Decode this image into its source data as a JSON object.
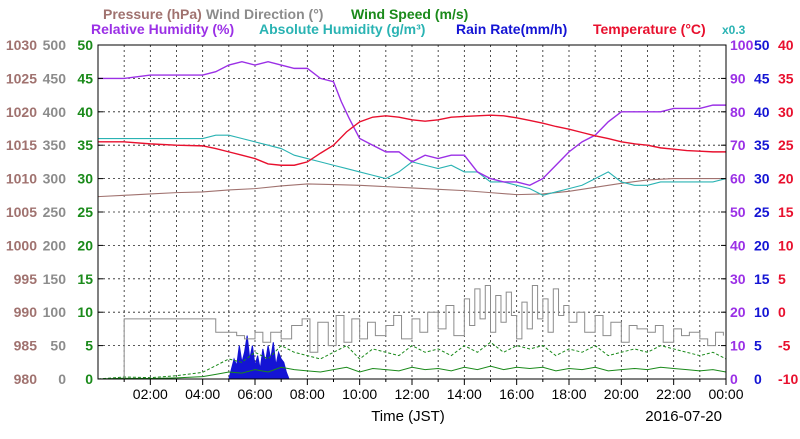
{
  "chart_data": {
    "type": "line",
    "legend": {
      "row1": [
        {
          "label": "Pressure (hPa)",
          "color": "#a0726f"
        },
        {
          "label": "Wind Direction (°)",
          "color": "#8c8c8c"
        },
        {
          "label": "Wind Speed (m/s)",
          "color": "#1a8a1a"
        }
      ],
      "row2": [
        {
          "label": "Relative Humidity (%)",
          "color": "#9b30e6"
        },
        {
          "label": "Absolute Humidity (g/m³)",
          "color": "#2ab3b3"
        },
        {
          "label": "Rain Rate(mm/h)",
          "color": "#1414d4"
        },
        {
          "label": "Temperature (°C)",
          "color": "#e8102e"
        }
      ],
      "abs_scale_note": "x0.3"
    },
    "xlabel": "Time (JST)",
    "date_label": "2016-07-20",
    "x_ticks": [
      "02:00",
      "04:00",
      "06:00",
      "08:00",
      "10:00",
      "12:00",
      "14:00",
      "16:00",
      "18:00",
      "20:00",
      "22:00",
      "00:00"
    ],
    "x_tick_hours": [
      2,
      4,
      6,
      8,
      10,
      12,
      14,
      16,
      18,
      20,
      22,
      24
    ],
    "xlim": [
      0,
      24
    ],
    "left_axes": [
      {
        "name": "pressure",
        "color": "#a0726f",
        "ticks": [
          "980",
          "985",
          "990",
          "995",
          "1000",
          "1005",
          "1010",
          "1015",
          "1020",
          "1025",
          "1030"
        ]
      },
      {
        "name": "wind-direction",
        "color": "#8c8c8c",
        "ticks": [
          "0",
          "50",
          "100",
          "150",
          "200",
          "250",
          "300",
          "350",
          "400",
          "450",
          "500"
        ]
      },
      {
        "name": "wind-speed",
        "color": "#1a8a1a",
        "ticks": [
          "0",
          "5",
          "10",
          "15",
          "20",
          "25",
          "30",
          "35",
          "40",
          "45",
          "50"
        ]
      }
    ],
    "right_axes": [
      {
        "name": "relative-humidity",
        "color": "#9b30e6",
        "ticks": [
          "0",
          "10",
          "20",
          "30",
          "40",
          "50",
          "60",
          "70",
          "80",
          "90",
          "100"
        ]
      },
      {
        "name": "rain-rate",
        "color": "#1414d4",
        "ticks": [
          "0",
          "5",
          "10",
          "15",
          "20",
          "25",
          "30",
          "35",
          "40",
          "45",
          "50"
        ]
      },
      {
        "name": "temperature",
        "color": "#e8102e",
        "ticks": [
          "-10",
          "-5",
          "0",
          "5",
          "10",
          "15",
          "20",
          "25",
          "30",
          "35",
          "40"
        ]
      }
    ],
    "series": [
      {
        "name": "Relative Humidity",
        "unit": "%",
        "ylim": [
          0,
          100
        ],
        "color": "#9b30e6",
        "x": [
          0,
          1,
          2,
          3,
          4,
          4.5,
          5,
          5.5,
          6,
          6.5,
          7,
          7.5,
          8,
          8.5,
          9,
          9.3,
          9.6,
          10,
          10.5,
          11,
          11.5,
          12,
          12.5,
          13,
          13.5,
          14,
          14.5,
          15,
          15.5,
          16,
          16.5,
          17,
          17.5,
          18,
          18.5,
          19,
          19.5,
          20,
          20.5,
          21,
          21.5,
          22,
          22.5,
          23,
          23.5,
          24
        ],
        "y": [
          90,
          90,
          91,
          91,
          91,
          92,
          94,
          95,
          94,
          95,
          94,
          93,
          93,
          90,
          89,
          83,
          78,
          72,
          70,
          68,
          68,
          65,
          67,
          66,
          67,
          67,
          62,
          60,
          59,
          59,
          58,
          60,
          64,
          68,
          71,
          73,
          77,
          80,
          80,
          80,
          80,
          81,
          81,
          81,
          82,
          82
        ]
      },
      {
        "name": "Absolute Humidity",
        "unit": "g/m³ (x0.3)",
        "ylim": [
          0,
          100
        ],
        "color": "#2ab3b3",
        "x": [
          0,
          1,
          2,
          3,
          4,
          4.5,
          5,
          5.5,
          6,
          6.5,
          7,
          7.5,
          8,
          8.5,
          9,
          9.5,
          10,
          10.5,
          11,
          11.5,
          12,
          12.5,
          13,
          13.5,
          14,
          14.5,
          15,
          15.5,
          16,
          16.5,
          17,
          17.5,
          18,
          18.5,
          19,
          19.5,
          20,
          20.5,
          21,
          21.5,
          22,
          22.5,
          23,
          23.5,
          24
        ],
        "y": [
          72,
          72,
          72,
          72,
          72,
          73,
          73,
          72,
          71,
          70,
          69,
          67,
          66,
          65,
          64,
          63,
          62,
          61,
          60,
          62,
          65,
          64,
          63,
          64,
          62,
          62,
          59,
          59,
          58,
          57,
          55,
          56,
          57,
          58,
          60,
          62,
          59,
          58,
          58,
          59,
          59,
          59,
          59,
          59,
          60
        ]
      },
      {
        "name": "Temperature",
        "unit": "°C",
        "ylim": [
          -10,
          40
        ],
        "color": "#e8102e",
        "x": [
          0,
          1,
          2,
          3,
          4,
          4.5,
          5,
          5.5,
          6,
          6.5,
          7,
          7.5,
          8,
          8.5,
          9,
          9.5,
          10,
          10.5,
          11,
          11.5,
          12,
          12.5,
          13,
          13.5,
          14,
          14.5,
          15,
          15.5,
          16,
          16.5,
          17,
          17.5,
          18,
          18.5,
          19,
          19.5,
          20,
          20.5,
          21,
          21.5,
          22,
          22.5,
          23,
          23.5,
          24
        ],
        "y": [
          25.5,
          25.5,
          25.2,
          25,
          24.9,
          24.5,
          24,
          23.5,
          23,
          22.2,
          22,
          22,
          22.5,
          23.8,
          25,
          27,
          28.5,
          29.2,
          29.4,
          29.2,
          28.8,
          28.6,
          28.8,
          29.2,
          29.3,
          29.4,
          29.5,
          29.4,
          29.1,
          28.7,
          28.3,
          27.8,
          27.4,
          26.9,
          26.4,
          26,
          25.5,
          25.2,
          25,
          24.6,
          24.4,
          24.2,
          24.1,
          24,
          24
        ]
      },
      {
        "name": "Pressure",
        "unit": "hPa",
        "ylim": [
          980,
          1030
        ],
        "color": "#a0726f",
        "x": [
          0,
          1,
          2,
          3,
          4,
          5,
          6,
          7,
          8,
          9,
          10,
          11,
          12,
          13,
          14,
          15,
          16,
          17,
          18,
          19,
          20,
          21,
          22,
          23,
          24
        ],
        "y": [
          1007.3,
          1007.5,
          1007.7,
          1007.9,
          1008,
          1008.3,
          1008.5,
          1008.9,
          1009.2,
          1009.1,
          1009,
          1008.8,
          1008.6,
          1008.4,
          1008.2,
          1007.9,
          1007.6,
          1007.7,
          1008.1,
          1008.7,
          1009.3,
          1009.8,
          1010,
          1010,
          1010
        ]
      },
      {
        "name": "Wind Direction",
        "unit": "°",
        "ylim": [
          0,
          500
        ],
        "color": "#8c8c8c",
        "style": "step",
        "x": [
          0,
          0.9,
          1,
          4.4,
          4.5,
          5,
          5.3,
          5.6,
          6,
          6.3,
          6.6,
          7,
          7.4,
          7.8,
          8.1,
          8.4,
          8.8,
          9.1,
          9.4,
          9.7,
          10,
          10.3,
          10.6,
          11,
          11.3,
          11.6,
          12,
          12.3,
          12.6,
          13,
          13.3,
          13.6,
          14,
          14.2,
          14.4,
          14.6,
          14.8,
          15,
          15.2,
          15.4,
          15.6,
          15.8,
          16,
          16.2,
          16.4,
          16.6,
          16.8,
          17,
          17.2,
          17.4,
          17.6,
          17.8,
          18,
          18.3,
          18.6,
          19,
          19.3,
          19.6,
          20,
          20.3,
          20.6,
          21,
          21.3,
          21.6,
          22,
          22.3,
          22.6,
          23,
          23.3,
          23.6,
          23.9
        ],
        "y": [
          0,
          0,
          90,
          90,
          70,
          70,
          65,
          60,
          70,
          55,
          70,
          60,
          80,
          90,
          40,
          85,
          50,
          95,
          55,
          90,
          60,
          85,
          65,
          80,
          95,
          60,
          90,
          70,
          100,
          75,
          110,
          65,
          120,
          80,
          135,
          90,
          140,
          70,
          125,
          85,
          130,
          95,
          60,
          115,
          75,
          140,
          90,
          120,
          70,
          135,
          95,
          110,
          85,
          100,
          70,
          95,
          65,
          85,
          55,
          80,
          75,
          70,
          80,
          55,
          75,
          65,
          70,
          60,
          50,
          70,
          65
        ]
      },
      {
        "name": "Wind Speed",
        "unit": "m/s",
        "ylim": [
          0,
          50
        ],
        "color": "#1a8a1a",
        "x": [
          0,
          1,
          2,
          3,
          4,
          4.5,
          5,
          5.5,
          6,
          6.5,
          7,
          7.5,
          8,
          8.5,
          9,
          9.5,
          10,
          10.5,
          11,
          11.5,
          12,
          12.5,
          13,
          13.5,
          14,
          14.5,
          15,
          15.5,
          16,
          16.5,
          17,
          17.5,
          18,
          18.5,
          19,
          19.5,
          20,
          20.5,
          21,
          21.5,
          22,
          22.5,
          23,
          23.5,
          24
        ],
        "y": [
          0,
          0.3,
          0.2,
          0.5,
          1,
          2,
          3,
          2.5,
          4,
          3,
          5,
          4,
          3.5,
          3,
          4,
          5,
          3,
          4.5,
          4,
          3.5,
          5,
          4,
          4.5,
          3.5,
          5,
          4,
          5.5,
          4,
          5,
          4.5,
          5,
          3.5,
          4.5,
          4,
          5,
          3.5,
          4,
          4.5,
          4,
          5,
          4.5,
          4,
          3.5,
          4,
          3
        ]
      },
      {
        "name": "Rain Rate",
        "unit": "mm/h",
        "ylim": [
          0,
          50
        ],
        "color": "#1414d4",
        "style": "area",
        "x": [
          5,
          5.1,
          5.2,
          5.3,
          5.4,
          5.5,
          5.6,
          5.7,
          5.8,
          5.9,
          6,
          6.1,
          6.2,
          6.3,
          6.4,
          6.5,
          6.6,
          6.7,
          6.8,
          6.9,
          7,
          7.1,
          7.2,
          7.3
        ],
        "y": [
          0,
          1.5,
          3,
          2,
          5,
          2.5,
          4,
          6.5,
          3,
          5,
          2,
          3.5,
          1.5,
          4.5,
          2.5,
          5,
          3,
          5.5,
          2,
          4,
          3,
          2.5,
          1,
          0
        ]
      }
    ]
  }
}
